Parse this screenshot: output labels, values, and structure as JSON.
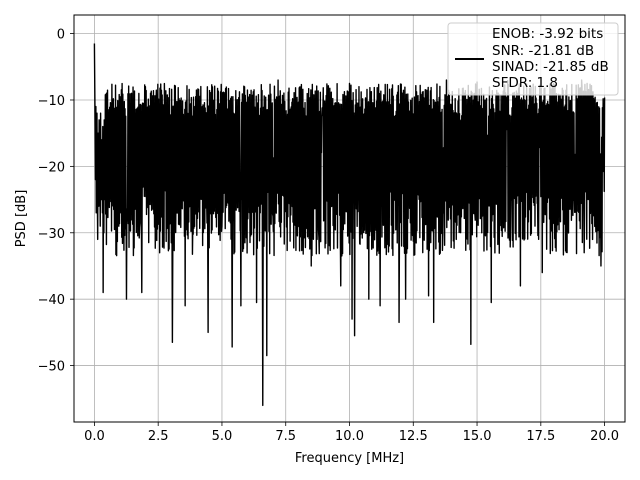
{
  "chart_data": {
    "type": "line",
    "title": "",
    "xlabel": "Frequency [MHz]",
    "ylabel": "PSD [dB]",
    "xlim": [
      -0.8,
      20.8
    ],
    "ylim": [
      -58.5,
      2.8
    ],
    "xticks": [
      0.0,
      2.5,
      5.0,
      7.5,
      10.0,
      12.5,
      15.0,
      17.5,
      20.0
    ],
    "xtick_labels": [
      "0.0",
      "2.5",
      "5.0",
      "7.5",
      "10.0",
      "12.5",
      "15.0",
      "17.5",
      "20.0"
    ],
    "yticks": [
      0,
      -10,
      -20,
      -30,
      -40,
      -50
    ],
    "ytick_labels": [
      "0",
      "−10",
      "−20",
      "−30",
      "−40",
      "−50"
    ],
    "grid": true,
    "legend_position": "upper-right",
    "legend_entries": [
      "ENOB: -3.92 bits",
      "SNR: -21.81 dB",
      "SINAD: -21.85 dB",
      "SFDR: 1.8"
    ],
    "series": [
      {
        "color": "#000000",
        "x_start": 0.0,
        "x_end": 20.0,
        "dense_band": {
          "upper_db": -10,
          "lower_db": -32
        },
        "values": [
          -1.5,
          -8,
          -14,
          -22,
          -11,
          -27,
          -18,
          -12,
          -24,
          -31,
          -15,
          -20,
          -26,
          -13,
          -22,
          -17,
          -29,
          -12,
          -21,
          -25,
          -16,
          -19,
          -27,
          -14,
          -23,
          -18,
          -30,
          -13,
          -21,
          -25
        ],
        "spikes": [
          {
            "x": 0.35,
            "y": -39
          },
          {
            "x": 1.25,
            "y": -40
          },
          {
            "x": 1.85,
            "y": -39
          },
          {
            "x": 3.05,
            "y": -46.5
          },
          {
            "x": 3.55,
            "y": -41
          },
          {
            "x": 4.45,
            "y": -45
          },
          {
            "x": 5.4,
            "y": -47.2
          },
          {
            "x": 5.75,
            "y": -41
          },
          {
            "x": 6.35,
            "y": -40.5
          },
          {
            "x": 6.6,
            "y": -56
          },
          {
            "x": 6.75,
            "y": -48.5
          },
          {
            "x": 7.2,
            "y": -45.8
          },
          {
            "x": 8.5,
            "y": -35
          },
          {
            "x": 9.65,
            "y": -38
          },
          {
            "x": 10.1,
            "y": -43
          },
          {
            "x": 10.2,
            "y": -45.5
          },
          {
            "x": 10.75,
            "y": -40
          },
          {
            "x": 11.2,
            "y": -41
          },
          {
            "x": 11.95,
            "y": -43.5
          },
          {
            "x": 12.2,
            "y": -40
          },
          {
            "x": 13.3,
            "y": -43.5
          },
          {
            "x": 13.1,
            "y": -39.5
          },
          {
            "x": 14.75,
            "y": -46.8
          },
          {
            "x": 15.55,
            "y": -40.5
          },
          {
            "x": 16.7,
            "y": -38
          },
          {
            "x": 17.55,
            "y": -36
          },
          {
            "x": 19.2,
            "y": -33
          },
          {
            "x": 19.85,
            "y": -35
          }
        ],
        "peaks": [
          {
            "x": 1.0,
            "y": -9.5
          },
          {
            "x": 2.0,
            "y": -8
          },
          {
            "x": 4.0,
            "y": -8.5
          },
          {
            "x": 6.0,
            "y": -8.5
          },
          {
            "x": 7.2,
            "y": -7
          },
          {
            "x": 8.4,
            "y": -8.3
          },
          {
            "x": 10.0,
            "y": -7.5
          },
          {
            "x": 12.0,
            "y": -7.6
          },
          {
            "x": 13.8,
            "y": -7
          },
          {
            "x": 15.0,
            "y": -7.3
          },
          {
            "x": 16.2,
            "y": -7.1
          },
          {
            "x": 18.0,
            "y": -7.5
          },
          {
            "x": 19.1,
            "y": -7
          }
        ]
      }
    ]
  }
}
